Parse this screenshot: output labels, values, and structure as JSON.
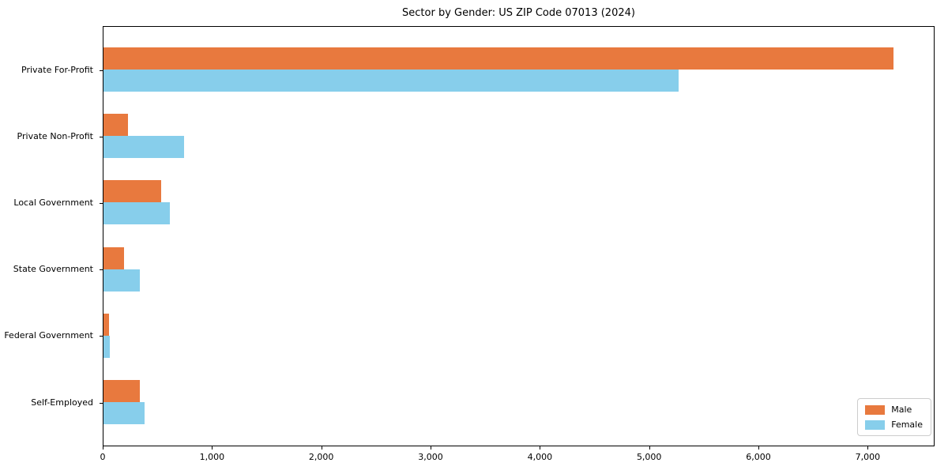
{
  "chart_data": {
    "type": "bar",
    "orientation": "horizontal",
    "title": "Sector by Gender: US ZIP Code 07013 (2024)",
    "categories": [
      "Private For-Profit",
      "Private Non-Profit",
      "Local Government",
      "State Government",
      "Federal Government",
      "Self-Employed"
    ],
    "series": [
      {
        "name": "Male",
        "color": "#e8793e",
        "values": [
          7230,
          225,
          530,
          185,
          50,
          330
        ]
      },
      {
        "name": "Female",
        "color": "#87ceeb",
        "values": [
          5265,
          740,
          605,
          330,
          55,
          375
        ]
      }
    ],
    "xlabel": "",
    "ylabel": "",
    "xlim": [
      0,
      7590
    ],
    "xticks": [
      0,
      1000,
      2000,
      3000,
      4000,
      5000,
      6000,
      7000
    ],
    "xtick_labels": [
      "0",
      "1,000",
      "2,000",
      "3,000",
      "4,000",
      "5,000",
      "6,000",
      "7,000"
    ],
    "grid": false,
    "legend_position": "lower right",
    "axis_color": "#000000",
    "background_color": "#ffffff"
  }
}
